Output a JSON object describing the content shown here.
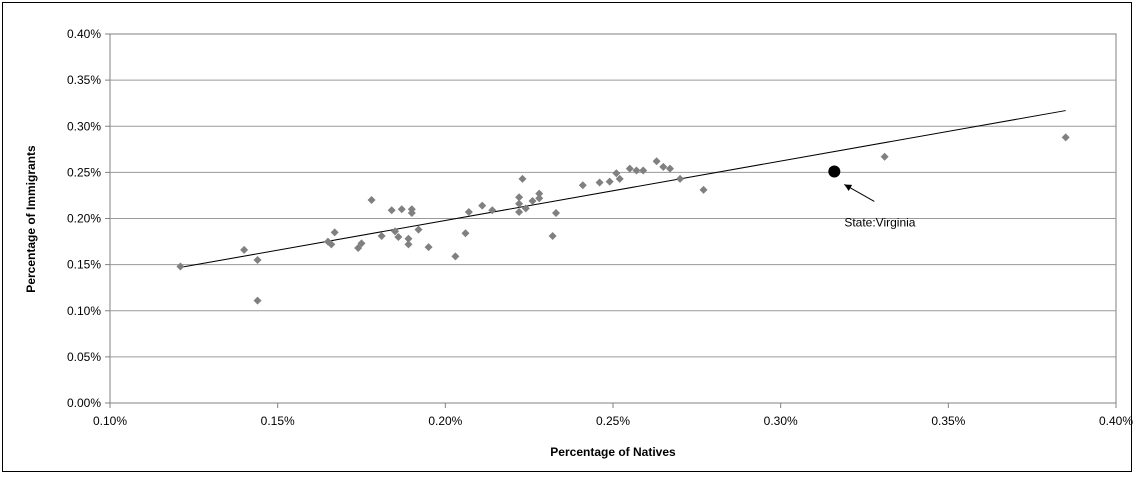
{
  "chart_data": {
    "type": "scatter",
    "xlabel": "Percentage of Natives",
    "ylabel": "Percentage of Immigrants",
    "xlim": [
      0.1,
      0.4
    ],
    "ylim": [
      0.0,
      0.4
    ],
    "x_ticks": [
      0.1,
      0.15,
      0.2,
      0.25,
      0.3,
      0.35,
      0.4
    ],
    "y_ticks": [
      0.0,
      0.05,
      0.1,
      0.15,
      0.2,
      0.25,
      0.3,
      0.35,
      0.4
    ],
    "x_tick_labels": [
      "0.10%",
      "0.15%",
      "0.20%",
      "0.25%",
      "0.30%",
      "0.35%",
      "0.40%"
    ],
    "y_tick_labels": [
      "0.00%",
      "0.05%",
      "0.10%",
      "0.15%",
      "0.20%",
      "0.25%",
      "0.30%",
      "0.35%",
      "0.40%"
    ],
    "unit": "%",
    "grid": "horizontal",
    "legend": "none",
    "colors": {
      "points": "#808080",
      "highlight": "#000000",
      "trendline": "#000000",
      "grid": "#9a9a9a"
    },
    "series": [
      {
        "points": [
          [
            0.121,
            0.148
          ],
          [
            0.14,
            0.166
          ],
          [
            0.144,
            0.111
          ],
          [
            0.144,
            0.155
          ],
          [
            0.165,
            0.175
          ],
          [
            0.166,
            0.172
          ],
          [
            0.167,
            0.185
          ],
          [
            0.174,
            0.168
          ],
          [
            0.175,
            0.173
          ],
          [
            0.178,
            0.22
          ],
          [
            0.181,
            0.181
          ],
          [
            0.184,
            0.209
          ],
          [
            0.185,
            0.186
          ],
          [
            0.186,
            0.18
          ],
          [
            0.187,
            0.21
          ],
          [
            0.189,
            0.178
          ],
          [
            0.189,
            0.172
          ],
          [
            0.19,
            0.206
          ],
          [
            0.19,
            0.21
          ],
          [
            0.192,
            0.188
          ],
          [
            0.195,
            0.169
          ],
          [
            0.203,
            0.159
          ],
          [
            0.206,
            0.184
          ],
          [
            0.207,
            0.207
          ],
          [
            0.211,
            0.214
          ],
          [
            0.214,
            0.209
          ],
          [
            0.222,
            0.207
          ],
          [
            0.222,
            0.216
          ],
          [
            0.222,
            0.223
          ],
          [
            0.223,
            0.243
          ],
          [
            0.224,
            0.211
          ],
          [
            0.226,
            0.219
          ],
          [
            0.228,
            0.222
          ],
          [
            0.228,
            0.227
          ],
          [
            0.232,
            0.181
          ],
          [
            0.233,
            0.206
          ],
          [
            0.241,
            0.236
          ],
          [
            0.246,
            0.239
          ],
          [
            0.249,
            0.24
          ],
          [
            0.251,
            0.249
          ],
          [
            0.252,
            0.243
          ],
          [
            0.255,
            0.254
          ],
          [
            0.257,
            0.252
          ],
          [
            0.259,
            0.252
          ],
          [
            0.263,
            0.262
          ],
          [
            0.265,
            0.256
          ],
          [
            0.267,
            0.254
          ],
          [
            0.27,
            0.243
          ],
          [
            0.277,
            0.231
          ],
          [
            0.331,
            0.267
          ],
          [
            0.385,
            0.288
          ]
        ]
      }
    ],
    "highlight": {
      "x": 0.316,
      "y": 0.251,
      "label": "State:Virginia"
    },
    "trendline": {
      "points": [
        [
          0.121,
          0.147
        ],
        [
          0.385,
          0.317
        ]
      ]
    }
  }
}
